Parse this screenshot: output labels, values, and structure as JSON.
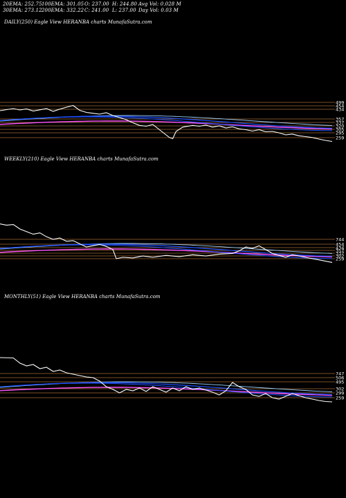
{
  "header": {
    "row1": [
      {
        "key": "ema20",
        "text": "20EMA: 252.75"
      },
      {
        "key": "ema100",
        "text": "100EMA: 301.05"
      },
      {
        "key": "open",
        "text": "O: 237.00"
      },
      {
        "key": "high",
        "text": "H: 244.80"
      },
      {
        "key": "avgvol",
        "text": "Avg Vol: 0.028 M"
      }
    ],
    "row2": [
      {
        "key": "ema30",
        "text": "30EMA: 273.12"
      },
      {
        "key": "ema200",
        "text": "200EMA: 332.22"
      },
      {
        "key": "close",
        "text": "C: 241.00"
      },
      {
        "key": "low",
        "text": "L: 237.00"
      },
      {
        "key": "dayvol",
        "text": "Day Vol: 0.03 M"
      }
    ]
  },
  "colors": {
    "background": "#000000",
    "price": "#ffffff",
    "ema_blue": "#1e50ff",
    "ema_lightblue": "#9ad1ff",
    "ema_pink": "#ff55ff",
    "support_line": "#c08040",
    "axis_label": "#ffffff"
  },
  "chart_data": [
    {
      "type": "line",
      "title": "DAILY(250) Eagle   View  HERANBA charts MunafaSutra.com",
      "levels": [
        "499",
        "454",
        "434",
        "357",
        "337",
        "320",
        "305",
        "295",
        "259"
      ],
      "price_series": [
        {
          "x": 0,
          "y": 440
        },
        {
          "x": 0.02,
          "y": 446
        },
        {
          "x": 0.04,
          "y": 452
        },
        {
          "x": 0.06,
          "y": 444
        },
        {
          "x": 0.08,
          "y": 450
        },
        {
          "x": 0.1,
          "y": 438
        },
        {
          "x": 0.12,
          "y": 445
        },
        {
          "x": 0.14,
          "y": 452
        },
        {
          "x": 0.16,
          "y": 436
        },
        {
          "x": 0.18,
          "y": 449
        },
        {
          "x": 0.2,
          "y": 460
        },
        {
          "x": 0.22,
          "y": 470
        },
        {
          "x": 0.24,
          "y": 442
        },
        {
          "x": 0.26,
          "y": 430
        },
        {
          "x": 0.28,
          "y": 425
        },
        {
          "x": 0.3,
          "y": 420
        },
        {
          "x": 0.32,
          "y": 428
        },
        {
          "x": 0.34,
          "y": 412
        },
        {
          "x": 0.36,
          "y": 400
        },
        {
          "x": 0.38,
          "y": 388
        },
        {
          "x": 0.4,
          "y": 370
        },
        {
          "x": 0.42,
          "y": 355
        },
        {
          "x": 0.44,
          "y": 350
        },
        {
          "x": 0.46,
          "y": 360
        },
        {
          "x": 0.48,
          "y": 330
        },
        {
          "x": 0.5,
          "y": 300
        },
        {
          "x": 0.51,
          "y": 285
        },
        {
          "x": 0.52,
          "y": 278
        },
        {
          "x": 0.53,
          "y": 320
        },
        {
          "x": 0.55,
          "y": 345
        },
        {
          "x": 0.58,
          "y": 355
        },
        {
          "x": 0.6,
          "y": 350
        },
        {
          "x": 0.62,
          "y": 357
        },
        {
          "x": 0.64,
          "y": 345
        },
        {
          "x": 0.66,
          "y": 352
        },
        {
          "x": 0.68,
          "y": 340
        },
        {
          "x": 0.7,
          "y": 346
        },
        {
          "x": 0.72,
          "y": 335
        },
        {
          "x": 0.74,
          "y": 330
        },
        {
          "x": 0.76,
          "y": 322
        },
        {
          "x": 0.78,
          "y": 330
        },
        {
          "x": 0.8,
          "y": 318
        },
        {
          "x": 0.82,
          "y": 320
        },
        {
          "x": 0.84,
          "y": 312
        },
        {
          "x": 0.86,
          "y": 300
        },
        {
          "x": 0.88,
          "y": 305
        },
        {
          "x": 0.9,
          "y": 295
        },
        {
          "x": 0.92,
          "y": 290
        },
        {
          "x": 0.94,
          "y": 285
        },
        {
          "x": 0.96,
          "y": 276
        },
        {
          "x": 0.98,
          "y": 268
        },
        {
          "x": 1.0,
          "y": 262
        }
      ],
      "ylim": [
        240,
        520
      ]
    },
    {
      "type": "line",
      "title": "WEEKLY(210) Eagle   View  HERANBA charts MunafaSutra.com",
      "levels": [
        "744",
        "454",
        "434",
        "357",
        "337",
        "302",
        "259"
      ],
      "price_series": [
        {
          "x": 0,
          "y": 960
        },
        {
          "x": 0.02,
          "y": 940
        },
        {
          "x": 0.04,
          "y": 950
        },
        {
          "x": 0.06,
          "y": 880
        },
        {
          "x": 0.08,
          "y": 840
        },
        {
          "x": 0.1,
          "y": 800
        },
        {
          "x": 0.12,
          "y": 820
        },
        {
          "x": 0.14,
          "y": 760
        },
        {
          "x": 0.16,
          "y": 720
        },
        {
          "x": 0.18,
          "y": 740
        },
        {
          "x": 0.2,
          "y": 690
        },
        {
          "x": 0.22,
          "y": 700
        },
        {
          "x": 0.24,
          "y": 650
        },
        {
          "x": 0.26,
          "y": 600
        },
        {
          "x": 0.28,
          "y": 620
        },
        {
          "x": 0.3,
          "y": 640
        },
        {
          "x": 0.32,
          "y": 610
        },
        {
          "x": 0.34,
          "y": 560
        },
        {
          "x": 0.35,
          "y": 420
        },
        {
          "x": 0.37,
          "y": 440
        },
        {
          "x": 0.4,
          "y": 430
        },
        {
          "x": 0.43,
          "y": 460
        },
        {
          "x": 0.46,
          "y": 440
        },
        {
          "x": 0.5,
          "y": 470
        },
        {
          "x": 0.54,
          "y": 450
        },
        {
          "x": 0.58,
          "y": 480
        },
        {
          "x": 0.62,
          "y": 460
        },
        {
          "x": 0.66,
          "y": 490
        },
        {
          "x": 0.7,
          "y": 500
        },
        {
          "x": 0.72,
          "y": 540
        },
        {
          "x": 0.74,
          "y": 600
        },
        {
          "x": 0.76,
          "y": 580
        },
        {
          "x": 0.78,
          "y": 620
        },
        {
          "x": 0.8,
          "y": 560
        },
        {
          "x": 0.82,
          "y": 500
        },
        {
          "x": 0.84,
          "y": 470
        },
        {
          "x": 0.86,
          "y": 440
        },
        {
          "x": 0.88,
          "y": 480
        },
        {
          "x": 0.9,
          "y": 460
        },
        {
          "x": 0.92,
          "y": 440
        },
        {
          "x": 0.94,
          "y": 420
        },
        {
          "x": 0.96,
          "y": 400
        },
        {
          "x": 0.98,
          "y": 380
        },
        {
          "x": 1.0,
          "y": 360
        }
      ],
      "ylim": [
        300,
        1000
      ]
    },
    {
      "type": "line",
      "title": "MONTHLY(51) Eagle   View  HERANBA charts MunafaSutra.com",
      "levels": [
        "747",
        "506",
        "495",
        "302",
        "299",
        "259"
      ],
      "price_series": [
        {
          "x": 0,
          "y": 980
        },
        {
          "x": 0.04,
          "y": 975
        },
        {
          "x": 0.06,
          "y": 900
        },
        {
          "x": 0.08,
          "y": 860
        },
        {
          "x": 0.1,
          "y": 880
        },
        {
          "x": 0.12,
          "y": 820
        },
        {
          "x": 0.14,
          "y": 840
        },
        {
          "x": 0.16,
          "y": 780
        },
        {
          "x": 0.18,
          "y": 800
        },
        {
          "x": 0.2,
          "y": 760
        },
        {
          "x": 0.22,
          "y": 740
        },
        {
          "x": 0.24,
          "y": 720
        },
        {
          "x": 0.26,
          "y": 700
        },
        {
          "x": 0.28,
          "y": 690
        },
        {
          "x": 0.3,
          "y": 640
        },
        {
          "x": 0.32,
          "y": 560
        },
        {
          "x": 0.34,
          "y": 520
        },
        {
          "x": 0.36,
          "y": 470
        },
        {
          "x": 0.38,
          "y": 520
        },
        {
          "x": 0.4,
          "y": 500
        },
        {
          "x": 0.42,
          "y": 540
        },
        {
          "x": 0.44,
          "y": 490
        },
        {
          "x": 0.46,
          "y": 560
        },
        {
          "x": 0.48,
          "y": 520
        },
        {
          "x": 0.5,
          "y": 480
        },
        {
          "x": 0.52,
          "y": 540
        },
        {
          "x": 0.54,
          "y": 500
        },
        {
          "x": 0.56,
          "y": 560
        },
        {
          "x": 0.58,
          "y": 520
        },
        {
          "x": 0.6,
          "y": 540
        },
        {
          "x": 0.62,
          "y": 510
        },
        {
          "x": 0.64,
          "y": 480
        },
        {
          "x": 0.66,
          "y": 440
        },
        {
          "x": 0.68,
          "y": 500
        },
        {
          "x": 0.7,
          "y": 620
        },
        {
          "x": 0.72,
          "y": 560
        },
        {
          "x": 0.74,
          "y": 520
        },
        {
          "x": 0.76,
          "y": 440
        },
        {
          "x": 0.78,
          "y": 420
        },
        {
          "x": 0.8,
          "y": 460
        },
        {
          "x": 0.82,
          "y": 400
        },
        {
          "x": 0.84,
          "y": 380
        },
        {
          "x": 0.86,
          "y": 420
        },
        {
          "x": 0.88,
          "y": 460
        },
        {
          "x": 0.9,
          "y": 430
        },
        {
          "x": 0.92,
          "y": 400
        },
        {
          "x": 0.94,
          "y": 380
        },
        {
          "x": 0.96,
          "y": 360
        },
        {
          "x": 0.98,
          "y": 345
        },
        {
          "x": 1.0,
          "y": 340
        }
      ],
      "ylim": [
        300,
        1000
      ]
    }
  ]
}
